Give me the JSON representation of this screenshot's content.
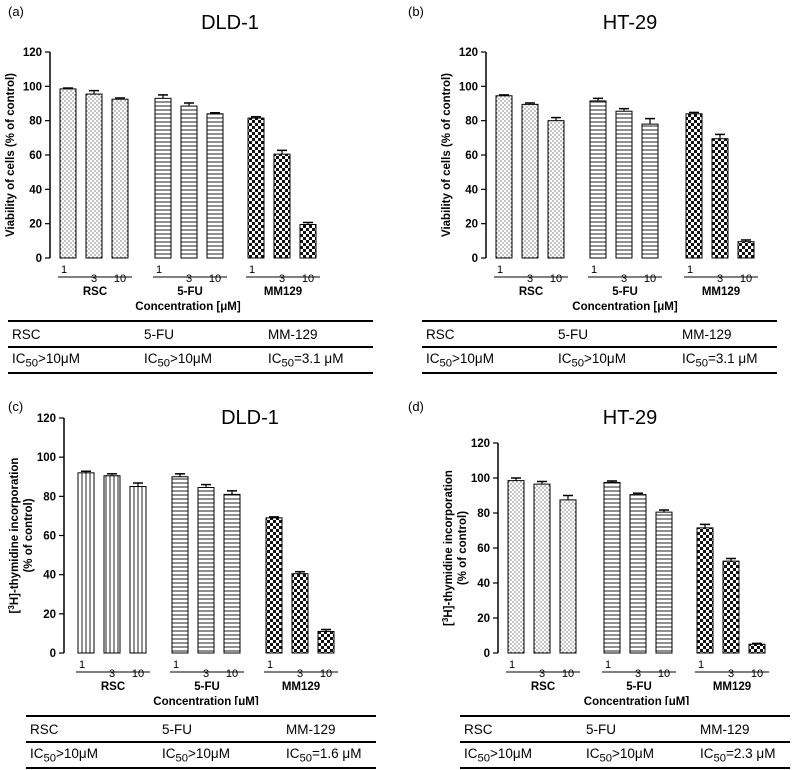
{
  "chart_data": [
    {
      "type": "bar",
      "panel_label": "(a)",
      "title": "DLD-1",
      "xlabel": "Concentration [μM]",
      "ylabel": "Viability of cells (% of control)",
      "ylim": [
        0,
        120
      ],
      "yticks": [
        0,
        20,
        40,
        60,
        80,
        100,
        120
      ],
      "groups": [
        {
          "name": "RSC",
          "pattern": "dots",
          "doses": [
            "1",
            "3",
            "10"
          ],
          "values": [
            98.5,
            95.5,
            92.5
          ],
          "errors": [
            0.5,
            2.0,
            0.7
          ]
        },
        {
          "name": "5-FU",
          "pattern": "hlines",
          "doses": [
            "1",
            "3",
            "10"
          ],
          "values": [
            93.0,
            88.5,
            84.0
          ],
          "errors": [
            2.0,
            1.8,
            0.6
          ]
        },
        {
          "name": "MM129",
          "pattern": "checker",
          "doses": [
            "1",
            "3",
            "10"
          ],
          "values": [
            81.5,
            60.5,
            19.5
          ],
          "errors": [
            0.8,
            2.2,
            1.2
          ]
        }
      ],
      "table": {
        "header": [
          "RSC",
          "5-FU",
          "MM-129"
        ],
        "values": [
          {
            "pre": "IC",
            "sub": "50",
            "post": ">10μM"
          },
          {
            "pre": "IC",
            "sub": "50",
            "post": ">10μM"
          },
          {
            "pre": "IC",
            "sub": "50",
            "post": "=3.1 μM"
          }
        ]
      }
    },
    {
      "type": "bar",
      "panel_label": "(b)",
      "title": "HT-29",
      "xlabel": "Concentration [μM]",
      "ylabel": "Viability of cells (% of control)",
      "ylim": [
        0,
        120
      ],
      "yticks": [
        0,
        20,
        40,
        60,
        80,
        100,
        120
      ],
      "groups": [
        {
          "name": "RSC",
          "pattern": "dots",
          "doses": [
            "1",
            "3",
            "10"
          ],
          "values": [
            94.5,
            89.5,
            80.0
          ],
          "errors": [
            0.5,
            0.8,
            1.8
          ]
        },
        {
          "name": "5-FU",
          "pattern": "hlines",
          "doses": [
            "1",
            "3",
            "10"
          ],
          "values": [
            91.5,
            85.5,
            78.0
          ],
          "errors": [
            1.5,
            1.5,
            3.2
          ]
        },
        {
          "name": "MM129",
          "pattern": "checker",
          "doses": [
            "1",
            "3",
            "10"
          ],
          "values": [
            84.0,
            69.5,
            9.5
          ],
          "errors": [
            0.8,
            2.5,
            1.0
          ]
        }
      ],
      "table": {
        "header": [
          "RSC",
          "5-FU",
          "MM-129"
        ],
        "values": [
          {
            "pre": "IC",
            "sub": "50",
            "post": ">10μM"
          },
          {
            "pre": "IC",
            "sub": "50",
            "post": ">10μM"
          },
          {
            "pre": "IC",
            "sub": "50",
            "post": "=3.1 μM"
          }
        ]
      }
    },
    {
      "type": "bar",
      "panel_label": "(c)",
      "title": "DLD-1",
      "xlabel": "Concentration [μM]",
      "ylabel": "[³H]-thymidine incorporation (% of control)",
      "ylabel_lines": [
        {
          "pre": "[",
          "sup": "3",
          "post": "H]-thymidine incorporation"
        },
        {
          "pre": "(% of control)",
          "sup": "",
          "post": ""
        }
      ],
      "ylim": [
        0,
        120
      ],
      "yticks": [
        0,
        20,
        40,
        60,
        80,
        100,
        120
      ],
      "groups": [
        {
          "name": "RSC",
          "pattern": "vlines",
          "doses": [
            "1",
            "3",
            "10"
          ],
          "values": [
            92.0,
            90.5,
            85.0
          ],
          "errors": [
            0.8,
            1.0,
            1.8
          ]
        },
        {
          "name": "5-FU",
          "pattern": "hlines",
          "doses": [
            "1",
            "3",
            "10"
          ],
          "values": [
            90.0,
            84.5,
            81.0
          ],
          "errors": [
            1.5,
            1.5,
            1.8
          ]
        },
        {
          "name": "MM129",
          "pattern": "checker",
          "doses": [
            "1",
            "3",
            "10"
          ],
          "values": [
            69.0,
            40.5,
            11.0
          ],
          "errors": [
            0.5,
            1.0,
            1.0
          ]
        }
      ],
      "table": {
        "header": [
          "RSC",
          "5-FU",
          "MM-129"
        ],
        "values": [
          {
            "pre": "IC",
            "sub": "50",
            "post": ">10μM"
          },
          {
            "pre": "IC",
            "sub": "50",
            "post": ">10μM"
          },
          {
            "pre": "IC",
            "sub": "50",
            "post": "=1.6 μM"
          }
        ]
      }
    },
    {
      "type": "bar",
      "panel_label": "(d)",
      "title": "HT-29",
      "xlabel": "Concentration [μM]",
      "ylabel": "[³H]-thymidine incorporation (% of control)",
      "ylabel_lines": [
        {
          "pre": "[",
          "sup": "3",
          "post": "H]-thymidine incorporation"
        },
        {
          "pre": "(% of control)",
          "sup": "",
          "post": ""
        }
      ],
      "ylim": [
        0,
        120
      ],
      "yticks": [
        0,
        20,
        40,
        60,
        80,
        100,
        120
      ],
      "groups": [
        {
          "name": "RSC",
          "pattern": "dots",
          "doses": [
            "1",
            "3",
            "10"
          ],
          "values": [
            98.5,
            96.5,
            87.5
          ],
          "errors": [
            1.5,
            1.5,
            2.5
          ]
        },
        {
          "name": "5-FU",
          "pattern": "hlines",
          "doses": [
            "1",
            "3",
            "10"
          ],
          "values": [
            97.5,
            90.5,
            80.5
          ],
          "errors": [
            0.8,
            0.8,
            1.2
          ]
        },
        {
          "name": "MM129",
          "pattern": "checker",
          "doses": [
            "1",
            "3",
            "10"
          ],
          "values": [
            71.5,
            52.5,
            5.0
          ],
          "errors": [
            2.0,
            1.5,
            0.5
          ]
        }
      ],
      "table": {
        "header": [
          "RSC",
          "5-FU",
          "MM-129"
        ],
        "values": [
          {
            "pre": "IC",
            "sub": "50",
            "post": ">10μM"
          },
          {
            "pre": "IC",
            "sub": "50",
            "post": ">10μM"
          },
          {
            "pre": "IC",
            "sub": "50",
            "post": "=2.3 μM"
          }
        ]
      }
    }
  ]
}
